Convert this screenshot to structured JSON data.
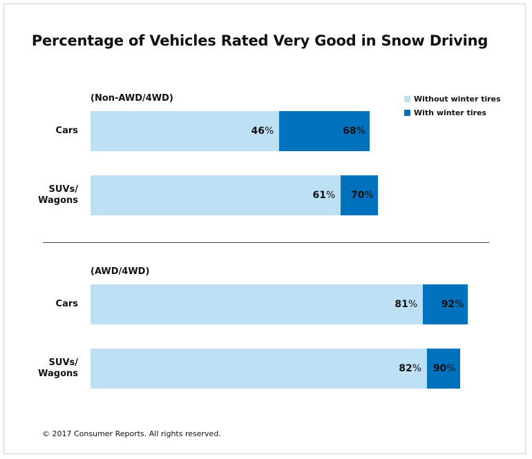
{
  "chart_data": {
    "type": "bar",
    "orientation": "horizontal",
    "stacked": "overlapping",
    "title": "Percentage of Vehicles Rated Very Good in Snow Driving",
    "xlim": [
      0,
      100
    ],
    "grid": false,
    "legend_placement": "top-right",
    "legend": [
      {
        "name": "Without winter tires",
        "color": "#bde0f5"
      },
      {
        "name": "With winter tires",
        "color": "#0071bc"
      }
    ],
    "groups": [
      {
        "label": "(Non-AWD/4WD)",
        "categories": [
          {
            "label": "Cars",
            "without": 46,
            "with": 68
          },
          {
            "label": "SUVs/\nWagons",
            "without": 61,
            "with": 70
          }
        ]
      },
      {
        "label": "(AWD/4WD)",
        "categories": [
          {
            "label": "Cars",
            "without": 81,
            "with": 92
          },
          {
            "label": "SUVs/\nWagons",
            "without": 82,
            "with": 90
          }
        ]
      }
    ],
    "unit": "%"
  },
  "footer": "© 2017 Consumer Reports. All rights reserved."
}
